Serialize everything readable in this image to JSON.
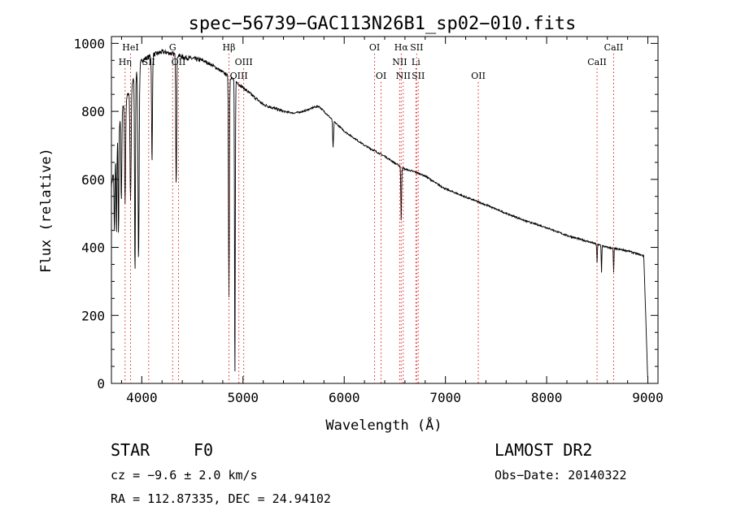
{
  "chart_data": {
    "type": "line",
    "title": "spec−56739−GAC113N26B1_sp02−010.fits",
    "xlabel": "Wavelength (Å)",
    "ylabel": "Flux (relative)",
    "xlim": [
      3700,
      9100
    ],
    "ylim": [
      0,
      1020
    ],
    "xticks": [
      4000,
      5000,
      6000,
      7000,
      8000,
      9000
    ],
    "yticks": [
      0,
      200,
      400,
      600,
      800,
      1000
    ],
    "continuum": [
      [
        3700,
        580
      ],
      [
        3800,
        800
      ],
      [
        3900,
        880
      ],
      [
        4000,
        950
      ],
      [
        4100,
        965
      ],
      [
        4200,
        975
      ],
      [
        4300,
        970
      ],
      [
        4400,
        960
      ],
      [
        4500,
        955
      ],
      [
        4600,
        950
      ],
      [
        4700,
        935
      ],
      [
        4800,
        915
      ],
      [
        4900,
        895
      ],
      [
        5000,
        870
      ],
      [
        5100,
        845
      ],
      [
        5200,
        820
      ],
      [
        5300,
        810
      ],
      [
        5400,
        800
      ],
      [
        5500,
        795
      ],
      [
        5600,
        800
      ],
      [
        5700,
        812
      ],
      [
        5750,
        815
      ],
      [
        5800,
        800
      ],
      [
        5900,
        770
      ],
      [
        6000,
        742
      ],
      [
        6200,
        700
      ],
      [
        6400,
        668
      ],
      [
        6500,
        648
      ],
      [
        6600,
        630
      ],
      [
        6700,
        622
      ],
      [
        6800,
        610
      ],
      [
        6900,
        590
      ],
      [
        7000,
        572
      ],
      [
        7200,
        548
      ],
      [
        7400,
        525
      ],
      [
        7600,
        500
      ],
      [
        7800,
        477
      ],
      [
        8000,
        458
      ],
      [
        8200,
        435
      ],
      [
        8400,
        418
      ],
      [
        8600,
        400
      ],
      [
        8800,
        390
      ],
      [
        8960,
        375
      ],
      [
        9000,
        0
      ]
    ],
    "absorption_lines": [
      {
        "center": 3730,
        "depth": 200,
        "width": 6
      },
      {
        "center": 3750,
        "depth": 250,
        "width": 5
      },
      {
        "center": 3770,
        "depth": 300,
        "width": 5
      },
      {
        "center": 3798,
        "depth": 260,
        "width": 6
      },
      {
        "center": 3835,
        "depth": 300,
        "width": 7
      },
      {
        "center": 3889,
        "depth": 330,
        "width": 8
      },
      {
        "center": 3933,
        "depth": 580,
        "width": 6
      },
      {
        "center": 3968,
        "depth": 560,
        "width": 8
      },
      {
        "center": 4101,
        "depth": 320,
        "width": 6
      },
      {
        "center": 4340,
        "depth": 380,
        "width": 6
      },
      {
        "center": 4861,
        "depth": 650,
        "width": 6
      },
      {
        "center": 4920,
        "depth": 890,
        "width": 5
      },
      {
        "center": 5890,
        "depth": 80,
        "width": 6
      },
      {
        "center": 6563,
        "depth": 165,
        "width": 5
      },
      {
        "center": 8498,
        "depth": 60,
        "width": 4
      },
      {
        "center": 8542,
        "depth": 80,
        "width": 4
      },
      {
        "center": 8662,
        "depth": 70,
        "width": 4
      }
    ],
    "reference_lines": [
      {
        "label": "HeI",
        "wave": 3889,
        "row": 1
      },
      {
        "label": "Hη",
        "wave": 3835,
        "row": 2
      },
      {
        "label": "SII",
        "wave": 4068,
        "row": 2
      },
      {
        "label": "G",
        "wave": 4305,
        "row": 1
      },
      {
        "label": "OII",
        "wave": 4363,
        "row": 2
      },
      {
        "label": "Hβ",
        "wave": 4861,
        "row": 1
      },
      {
        "label": "OIII",
        "wave": 5007,
        "row": 2
      },
      {
        "label": "OIII",
        "wave": 4959,
        "row": 3
      },
      {
        "label": "OI",
        "wave": 6300,
        "row": 1
      },
      {
        "label": "OI",
        "wave": 6364,
        "row": 3
      },
      {
        "label": "Hα",
        "wave": 6563,
        "row": 1
      },
      {
        "label": "SII",
        "wave": 6716,
        "row": 1
      },
      {
        "label": "NII",
        "wave": 6548,
        "row": 2
      },
      {
        "label": "Li",
        "wave": 6708,
        "row": 2
      },
      {
        "label": "NII",
        "wave": 6583,
        "row": 3
      },
      {
        "label": "SII",
        "wave": 6731,
        "row": 3
      },
      {
        "label": "OII",
        "wave": 7325,
        "row": 3
      },
      {
        "label": "CaII",
        "wave": 8662,
        "row": 1
      },
      {
        "label": "CaII",
        "wave": 8498,
        "row": 2
      }
    ]
  },
  "info": {
    "object": "STAR",
    "subclass": "F0",
    "survey": "LAMOST DR2",
    "cz": "cz = −9.6 ± 2.0 km/s",
    "obs_date": "Obs−Date: 20140322",
    "coords": "RA = 112.87335, DEC =  24.94102"
  }
}
